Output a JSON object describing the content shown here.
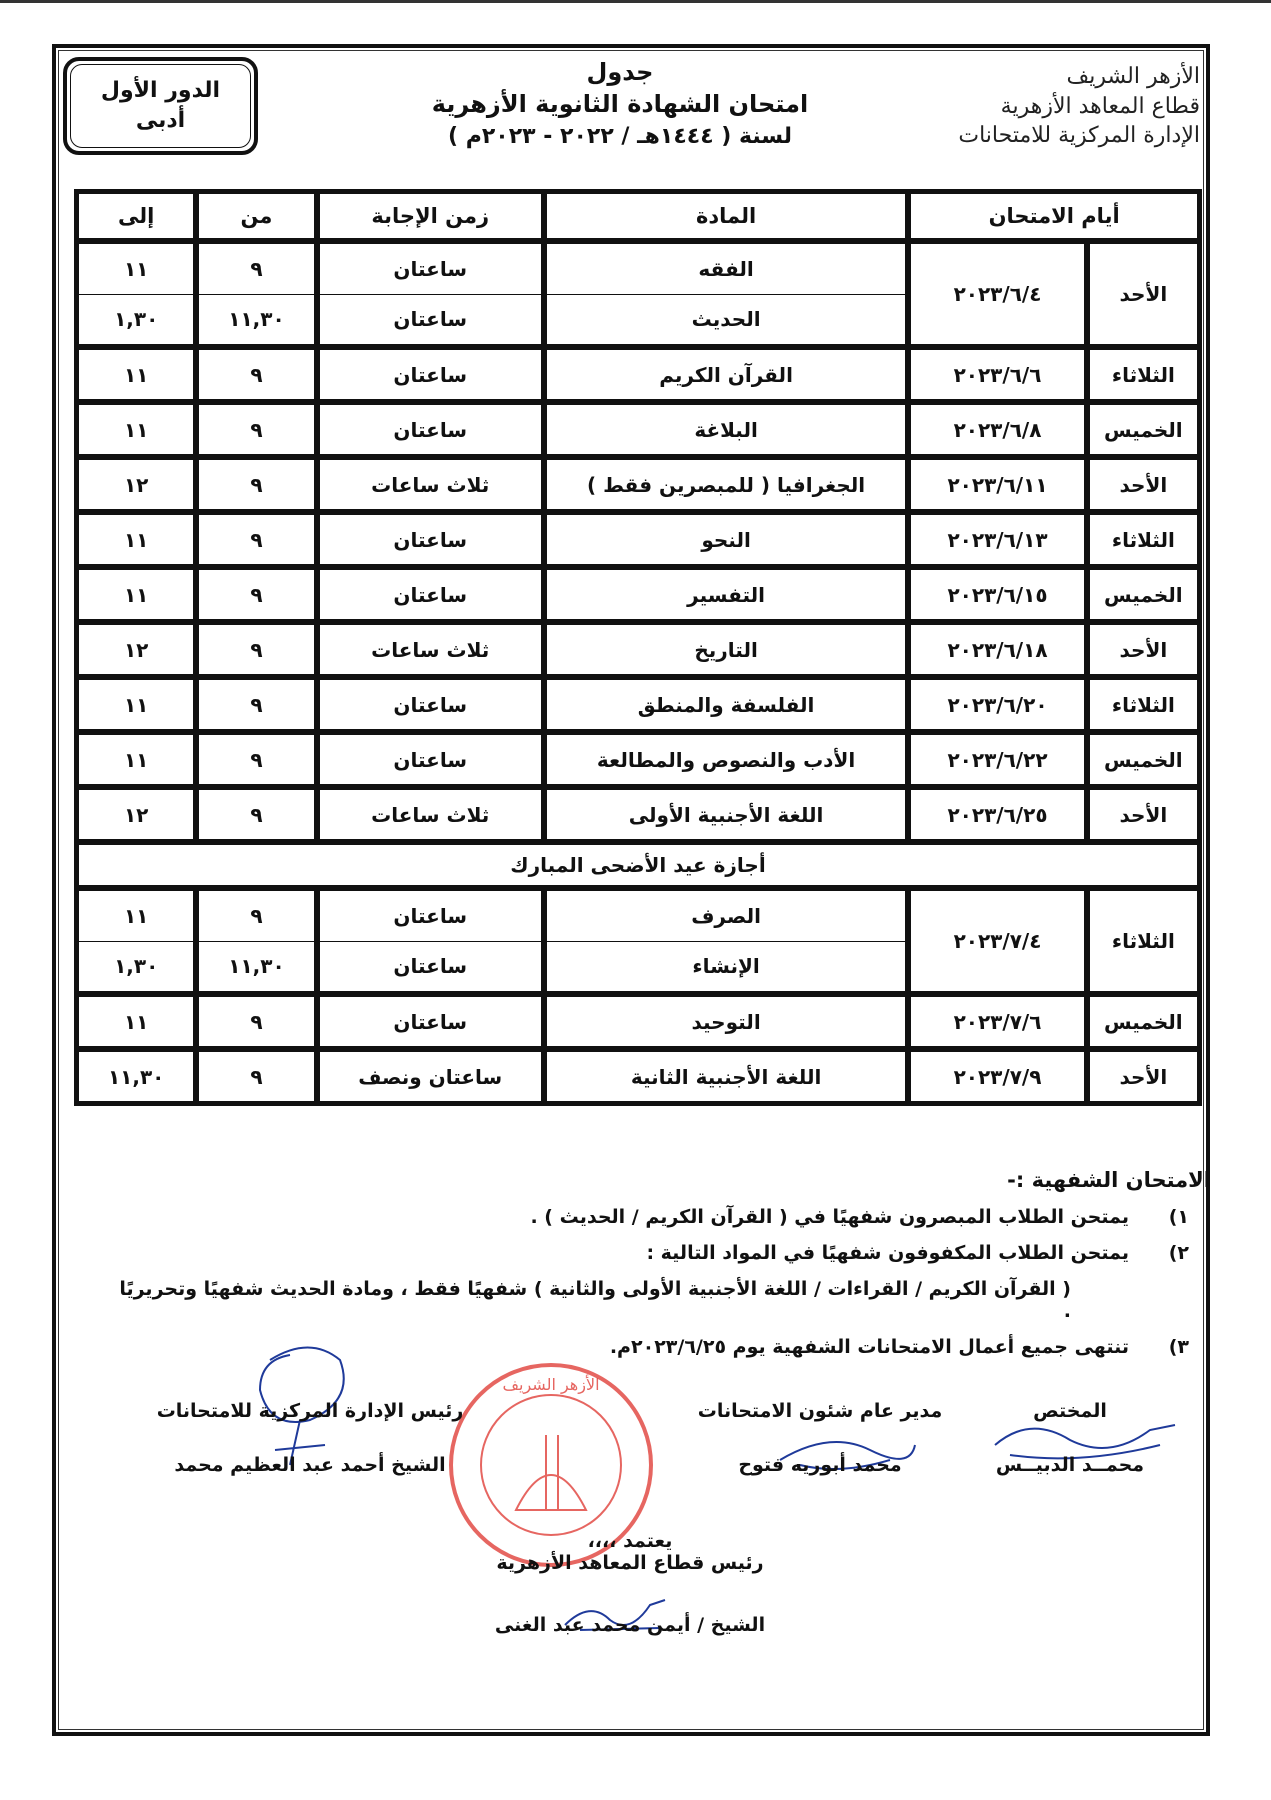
{
  "header": {
    "session_box": {
      "line1": "الدور الأول",
      "line2": "أدبى"
    },
    "title_line1": "جدول",
    "title_line2": "امتحان الشهادة الثانوية الأزهرية",
    "title_line3": "لسنة ( ١٤٤٤هـ / ٢٠٢٢ - ٢٠٢٣م )",
    "logo_lines": [
      "الأزهر الشريف",
      "قطاع المعاهد الأزهرية",
      "الإدارة المركزية للامتحانات"
    ]
  },
  "table": {
    "columns": {
      "days": "أيام الامتحان",
      "subject": "المادة",
      "duration": "زمن الإجابة",
      "from": "من",
      "to": "إلى"
    },
    "rows": [
      {
        "day": "الأحد",
        "date": "٢٠٢٣/٦/٤",
        "sessions": [
          {
            "subject": "الفقه",
            "duration": "ساعتان",
            "from": "٩",
            "to": "١١"
          },
          {
            "subject": "الحديث",
            "duration": "ساعتان",
            "from": "١١,٣٠",
            "to": "١,٣٠"
          }
        ]
      },
      {
        "day": "الثلاثاء",
        "date": "٢٠٢٣/٦/٦",
        "sessions": [
          {
            "subject": "القرآن الكريم",
            "duration": "ساعتان",
            "from": "٩",
            "to": "١١"
          }
        ]
      },
      {
        "day": "الخميس",
        "date": "٢٠٢٣/٦/٨",
        "sessions": [
          {
            "subject": "البلاغة",
            "duration": "ساعتان",
            "from": "٩",
            "to": "١١"
          }
        ]
      },
      {
        "day": "الأحد",
        "date": "٢٠٢٣/٦/١١",
        "sessions": [
          {
            "subject": "الجغرافيا ( للمبصرين فقط )",
            "duration": "ثلاث ساعات",
            "from": "٩",
            "to": "١٢"
          }
        ]
      },
      {
        "day": "الثلاثاء",
        "date": "٢٠٢٣/٦/١٣",
        "sessions": [
          {
            "subject": "النحو",
            "duration": "ساعتان",
            "from": "٩",
            "to": "١١"
          }
        ]
      },
      {
        "day": "الخميس",
        "date": "٢٠٢٣/٦/١٥",
        "sessions": [
          {
            "subject": "التفسير",
            "duration": "ساعتان",
            "from": "٩",
            "to": "١١"
          }
        ]
      },
      {
        "day": "الأحد",
        "date": "٢٠٢٣/٦/١٨",
        "sessions": [
          {
            "subject": "التاريخ",
            "duration": "ثلاث ساعات",
            "from": "٩",
            "to": "١٢"
          }
        ]
      },
      {
        "day": "الثلاثاء",
        "date": "٢٠٢٣/٦/٢٠",
        "sessions": [
          {
            "subject": "الفلسفة والمنطق",
            "duration": "ساعتان",
            "from": "٩",
            "to": "١١"
          }
        ]
      },
      {
        "day": "الخميس",
        "date": "٢٠٢٣/٦/٢٢",
        "sessions": [
          {
            "subject": "الأدب والنصوص والمطالعة",
            "duration": "ساعتان",
            "from": "٩",
            "to": "١١"
          }
        ]
      },
      {
        "day": "الأحد",
        "date": "٢٠٢٣/٦/٢٥",
        "sessions": [
          {
            "subject": "اللغة الأجنبية الأولى",
            "duration": "ثلاث ساعات",
            "from": "٩",
            "to": "١٢"
          }
        ]
      }
    ],
    "holiday": "أجازة عيد الأضحى المبارك",
    "rows_after": [
      {
        "day": "الثلاثاء",
        "date": "٢٠٢٣/٧/٤",
        "sessions": [
          {
            "subject": "الصرف",
            "duration": "ساعتان",
            "from": "٩",
            "to": "١١"
          },
          {
            "subject": "الإنشاء",
            "duration": "ساعتان",
            "from": "١١,٣٠",
            "to": "١,٣٠"
          }
        ]
      },
      {
        "day": "الخميس",
        "date": "٢٠٢٣/٧/٦",
        "sessions": [
          {
            "subject": "التوحيد",
            "duration": "ساعتان",
            "from": "٩",
            "to": "١١"
          }
        ]
      },
      {
        "day": "الأحد",
        "date": "٢٠٢٣/٧/٩",
        "sessions": [
          {
            "subject": "اللغة الأجنبية الثانية",
            "duration": "ساعتان ونصف",
            "from": "٩",
            "to": "١١,٣٠"
          }
        ]
      }
    ]
  },
  "notes": {
    "title": "الامتحان الشفهية :-",
    "items": [
      {
        "num": "١)",
        "text": "يمتحن الطلاب المبصرون شفهيًا في ( القرآن الكريم / الحديث ) ."
      },
      {
        "num": "٢)",
        "text": "يمتحن الطلاب المكفوفون شفهيًا في المواد التالية :"
      },
      {
        "num": "٣)",
        "text": "تنتهى جميع أعمال الامتحانات الشفهية يوم ٢٠٢٣/٦/٢٥م."
      }
    ],
    "item2_detail": "( القرآن الكريم / القراءات / اللغة الأجنبية الأولى والثانية ) شفهيًا فقط ، ومادة الحديث شفهيًا وتحريريًا ."
  },
  "signatures": {
    "specialist": {
      "role": "المختص",
      "name": "محمــد الدبيــس"
    },
    "director": {
      "role": "مدير عام شئون الامتحانات",
      "name": "محمد أبوريه فتوح"
    },
    "head_central": {
      "role": "رئيس الإدارة المركزية للامتحانات",
      "name": "الشيخ أحمد عبد العظيم محمد"
    },
    "approval": {
      "label": "يعتمد ،،،،",
      "role": "رئيس قطاع المعاهد الأزهرية",
      "name": "الشيخ / أيمن محمد عبد الغنى"
    }
  },
  "stamp_text": "الأزهر الشريف",
  "colors": {
    "ink": "#111111",
    "stamp": "#e0403a",
    "signature": "#1f3a9a"
  }
}
